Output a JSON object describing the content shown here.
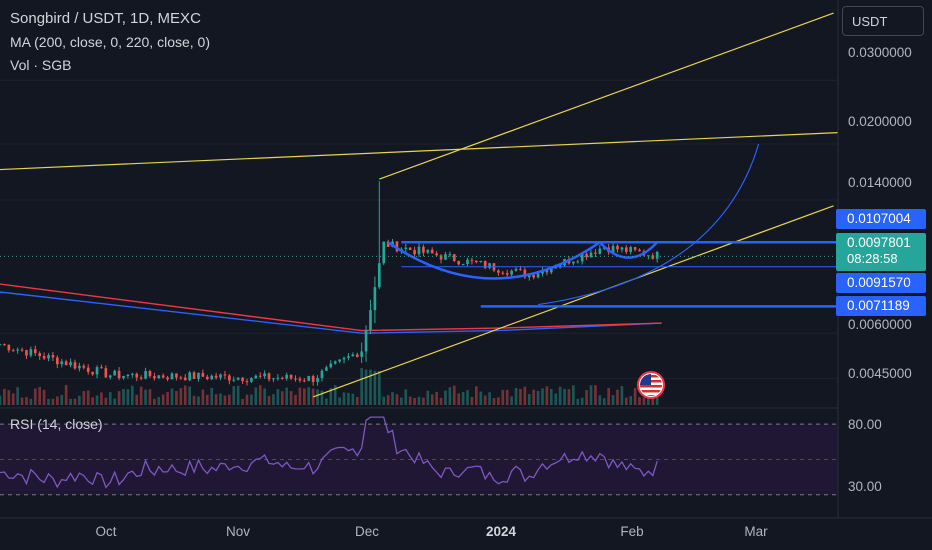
{
  "header": {
    "title": "Songbird / USDT, 1D, MEXC",
    "ma_legend": "MA (200, close, 0, 220, close, 0)",
    "vol_legend": "Vol · SGB",
    "currency": "USDT"
  },
  "rsi": {
    "label": "RSI (14, close)",
    "upper": "80.00",
    "lower": "30.00"
  },
  "price_axis": {
    "ticks": [
      "0.0300000",
      "0.0200000",
      "0.0140000",
      "0.0060000",
      "0.0045000"
    ]
  },
  "badges": {
    "b1": "0.0107004",
    "current_price": "0.0097801",
    "countdown": "08:28:58",
    "b3": "0.0091570",
    "b4": "0.0071189"
  },
  "time_axis": [
    "Oct",
    "Nov",
    "Dec",
    "2024",
    "Feb",
    "Mar"
  ],
  "colors": {
    "background": "#131722",
    "bull": "#26a69a",
    "bear": "#ef5350",
    "ma": "#2962ff",
    "ma2": "#f23645",
    "trendline": "#e8d44d",
    "drawing": "#2962ff",
    "rsi_line": "#7e57c2",
    "rsi_band": "#1f1734"
  },
  "chart_data": {
    "type": "candlestick",
    "title": "Songbird / USDT, 1D, MEXC",
    "y_scale": "log",
    "ylim": [
      0.0038,
      0.05
    ],
    "x_range": [
      "2023-09-10",
      "2024-03-18"
    ],
    "price_ticks": [
      0.03,
      0.02,
      0.014,
      0.006,
      0.0045
    ],
    "phases": [
      {
        "from": "2023-09-10",
        "to": "2023-10-05",
        "start": 0.0056,
        "end": 0.0046
      },
      {
        "from": "2023-10-05",
        "to": "2023-11-20",
        "start": 0.0046,
        "end": 0.0045
      },
      {
        "from": "2023-11-20",
        "to": "2023-12-01",
        "start": 0.0045,
        "end": 0.0054
      },
      {
        "from": "2023-12-01",
        "to": "2023-12-06",
        "start": 0.0054,
        "end": 0.0106
      },
      {
        "from": "2023-12-06",
        "to": "2024-01-08",
        "start": 0.0106,
        "end": 0.0087
      },
      {
        "from": "2024-01-08",
        "to": "2024-01-25",
        "start": 0.0087,
        "end": 0.0104
      },
      {
        "from": "2024-01-25",
        "to": "2024-02-07",
        "start": 0.0104,
        "end": 0.0098
      }
    ],
    "current_price": 0.0097801,
    "horizontal_levels": [
      0.0107004,
      0.009157,
      0.0071189
    ],
    "ma_200": [
      {
        "x": "2023-09-10",
        "y": 0.0078
      },
      {
        "x": "2023-12-01",
        "y": 0.006
      },
      {
        "x": "2024-01-01",
        "y": 0.0061
      },
      {
        "x": "2024-02-07",
        "y": 0.0064
      }
    ],
    "ma_220": [
      {
        "x": "2023-09-10",
        "y": 0.0082
      },
      {
        "x": "2023-12-01",
        "y": 0.0061
      },
      {
        "x": "2024-01-01",
        "y": 0.0062
      },
      {
        "x": "2024-02-07",
        "y": 0.0064
      }
    ],
    "trendlines": [
      {
        "from": {
          "x": "2023-09-10",
          "y": 0.017
        },
        "to": {
          "x": "2024-03-18",
          "y": 0.0215
        }
      },
      {
        "from": {
          "x": "2023-12-05",
          "y": 0.016
        },
        "to": {
          "x": "2024-03-17",
          "y": 0.046
        }
      },
      {
        "from": {
          "x": "2023-11-20",
          "y": 0.004
        },
        "to": {
          "x": "2024-03-17",
          "y": 0.0135
        }
      }
    ],
    "rsi": {
      "name": "RSI (14, close)",
      "levels": [
        80,
        30
      ],
      "ylim": [
        15,
        90
      ]
    }
  }
}
